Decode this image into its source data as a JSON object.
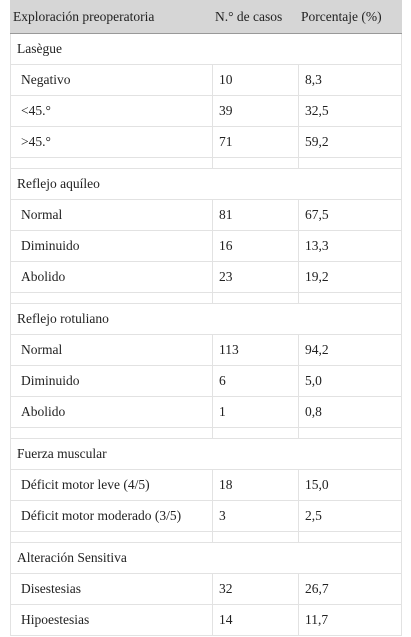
{
  "header": [
    "Exploración preoperatoria",
    "N.° de casos",
    "Porcentaje (%)"
  ],
  "sections": [
    {
      "title": "Lasègue",
      "rows": [
        [
          "Negativo",
          10,
          "8,3"
        ],
        [
          "<45.°",
          39,
          "32,5"
        ],
        [
          ">45.°",
          71,
          "59,2"
        ]
      ]
    },
    {
      "title": "Reflejo aquíleo",
      "rows": [
        [
          "Normal",
          81,
          "67,5"
        ],
        [
          "Diminuido",
          16,
          "13,3"
        ],
        [
          "Abolido",
          23,
          "19,2"
        ]
      ]
    },
    {
      "title": "Reflejo rotuliano",
      "rows": [
        [
          "Normal",
          113,
          "94,2"
        ],
        [
          "Diminuido",
          6,
          "5,0"
        ],
        [
          "Abolido",
          1,
          "0,8"
        ]
      ]
    },
    {
      "title": "Fuerza muscular",
      "rows": [
        [
          "Déficit motor leve (4/5)",
          18,
          "15,0"
        ],
        [
          "Déficit motor moderado (3/5)",
          3,
          "2,5"
        ]
      ]
    },
    {
      "title": "Alteración Sensitiva",
      "rows": [
        [
          "Disestesias",
          32,
          "26,7"
        ],
        [
          "Hipoestesias",
          14,
          "11,7"
        ]
      ]
    }
  ]
}
